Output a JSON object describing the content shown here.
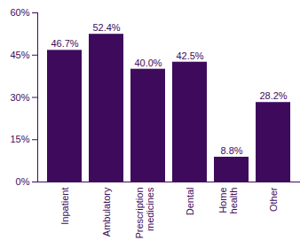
{
  "chart_data": {
    "type": "bar",
    "categories": [
      "Inpatient",
      "Ambulatory",
      "Prescription medicines",
      "Dental",
      "Home health",
      "Other"
    ],
    "values": [
      46.7,
      52.4,
      40.0,
      42.5,
      8.8,
      28.2
    ],
    "value_labels": [
      "46.7%",
      "52.4%",
      "40.0%",
      "42.5%",
      "8.8%",
      "28.2%"
    ],
    "color": "#3e0b5c",
    "ylim": [
      0,
      60
    ],
    "yticks": [
      {
        "value": 0,
        "label": "0%"
      },
      {
        "value": 15,
        "label": "15%"
      },
      {
        "value": 30,
        "label": "30%"
      },
      {
        "value": 45,
        "label": "45%"
      },
      {
        "value": 60,
        "label": "60%"
      }
    ],
    "grid": false,
    "data_labels": true
  }
}
